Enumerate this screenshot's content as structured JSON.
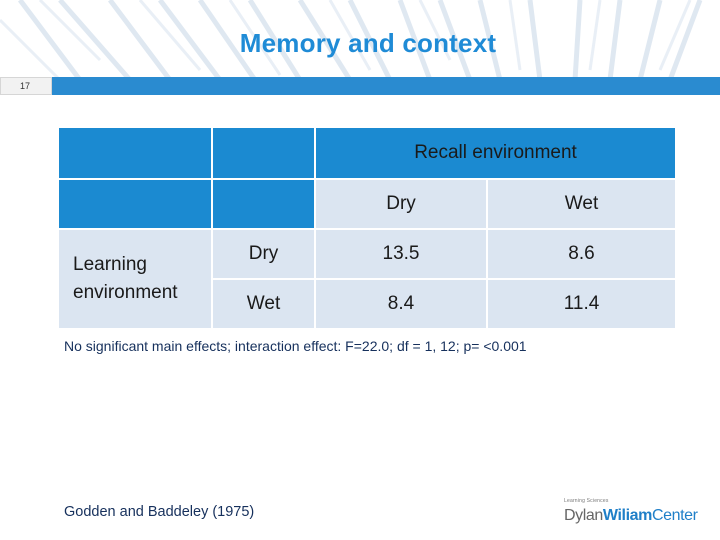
{
  "slide": {
    "title": "Memory and context",
    "number": "17"
  },
  "table": {
    "column_header": "Recall environment",
    "columns": [
      "Dry",
      "Wet"
    ],
    "row_header": "Learning environment",
    "rows": [
      {
        "label": "Dry",
        "values": [
          "13.5",
          "8.6"
        ]
      },
      {
        "label": "Wet",
        "values": [
          "8.4",
          "11.4"
        ]
      }
    ]
  },
  "note": "No significant main effects; interaction effect: F=22.0; df = 1, 12; p= <0.001",
  "citation": "Godden and Baddeley (1975)",
  "logo": {
    "tagline": "Learning Sciences",
    "name_part1": "Dylan",
    "name_part2": "Wiliam",
    "name_part3": "Center"
  },
  "colors": {
    "title": "#1f8bd6",
    "header_blue": "#1b8ad1",
    "cell_light": "#dbe5f1",
    "note_text": "#16305c"
  }
}
